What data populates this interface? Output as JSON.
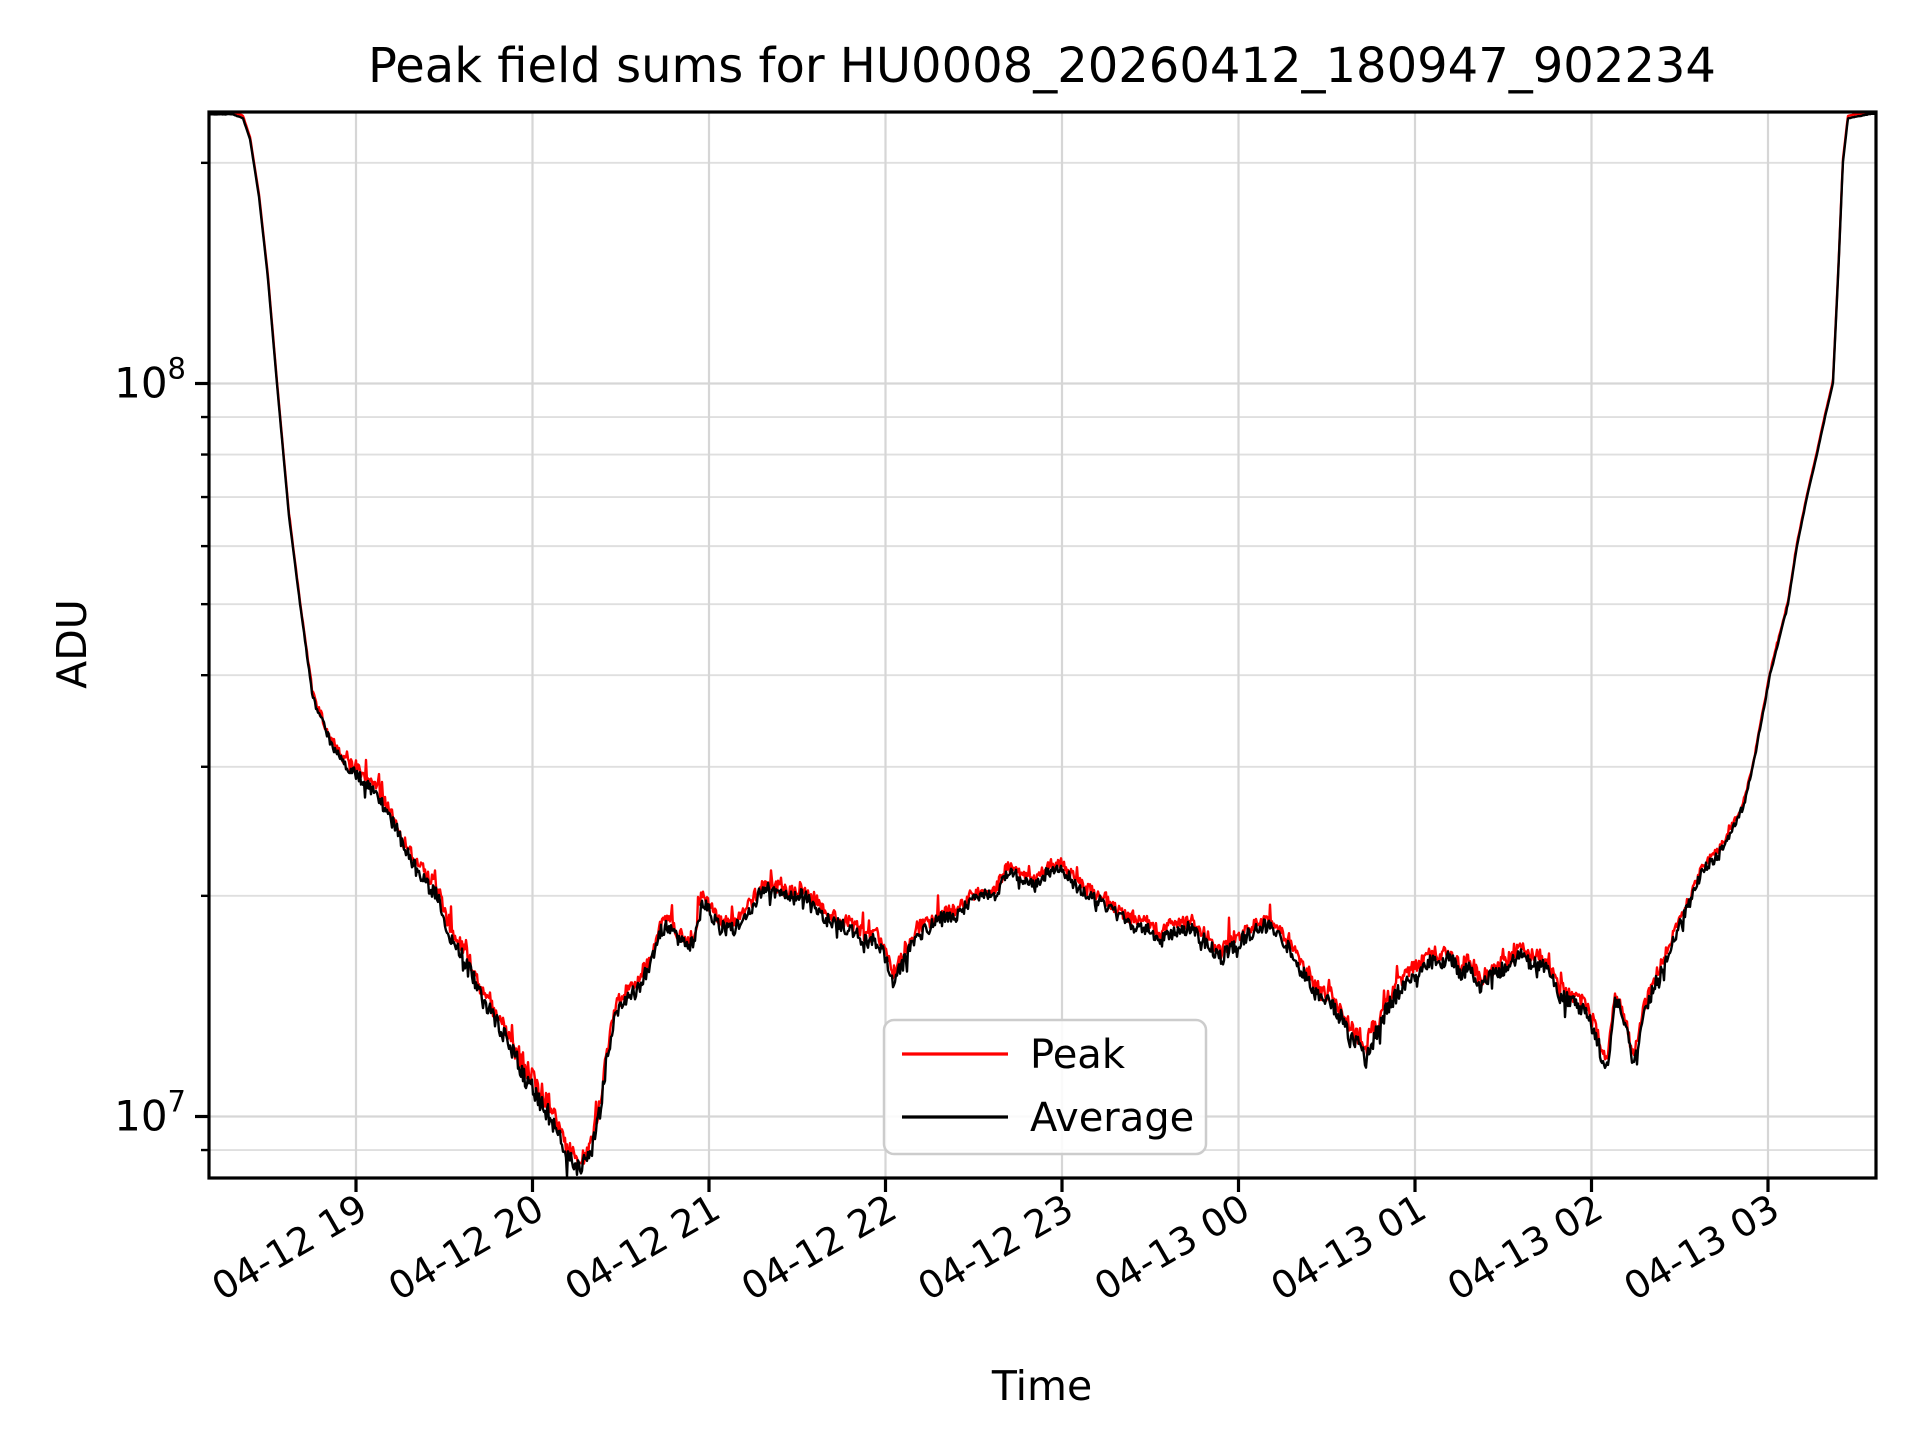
{
  "figure": {
    "title": "Peak field sums for HU0008_20260412_180947_902234",
    "background": "#ffffff"
  },
  "axes": {
    "xlabel": "Time",
    "ylabel": "ADU",
    "spine_color": "#000000",
    "grid_major_color": "#d6d6d6",
    "grid_minor_color": "#dfdfdf"
  },
  "legend": {
    "items": [
      {
        "label": "Peak",
        "color": "#ff0000"
      },
      {
        "label": "Average",
        "color": "#000000"
      }
    ]
  },
  "chart_data": {
    "type": "line",
    "title": "Peak field sums for HU0008_20260412_180947_902234",
    "xlabel": "Time",
    "ylabel": "ADU",
    "yscale": "log",
    "ylim": [
      8240000,
      235000000
    ],
    "xlim_hours_after_0412_1800": [
      0.167,
      9.612
    ],
    "grid": "both",
    "legend_loc": "lower center",
    "x_tick_hours": [
      1,
      2,
      3,
      4,
      5,
      6,
      7,
      8,
      9
    ],
    "x_tick_labels": [
      "04-12 19",
      "04-12 20",
      "04-12 21",
      "04-12 22",
      "04-12 23",
      "04-13 00",
      "04-13 01",
      "04-13 02",
      "04-13 03"
    ],
    "y_tick_values": [
      10000000,
      100000000
    ],
    "y_tick_labels": [
      {
        "base": "10",
        "exp": "7"
      },
      {
        "base": "10",
        "exp": "8"
      }
    ],
    "series": [
      {
        "name": "Peak",
        "color": "#ff0000",
        "derivation": "average_plus_log_offset",
        "log_offset": 0.012
      },
      {
        "name": "Average",
        "color": "#000000",
        "derivation": "anchors_with_noise"
      }
    ],
    "average_anchors_t_value_noise": [
      [
        0.167,
        233000000,
        0.0004
      ],
      [
        0.3,
        233000000,
        0.0004
      ],
      [
        0.36,
        230000000,
        0.0005
      ],
      [
        0.4,
        215000000,
        0.0005
      ],
      [
        0.45,
        180000000,
        0.0005
      ],
      [
        0.5,
        140000000,
        0.0005
      ],
      [
        0.552,
        100000000,
        0.0005
      ],
      [
        0.62,
        66000000,
        0.0008
      ],
      [
        0.683,
        50000000,
        0.0012
      ],
      [
        0.72,
        43000000,
        0.002
      ],
      [
        0.756,
        37300000,
        0.005
      ],
      [
        0.85,
        32500000,
        0.008
      ],
      [
        0.94,
        30000000,
        0.008
      ],
      [
        1.01,
        29200000,
        0.009
      ],
      [
        1.08,
        28000000,
        0.01
      ],
      [
        1.14,
        27000000,
        0.01
      ],
      [
        1.19,
        25500000,
        0.01
      ],
      [
        1.23,
        24600000,
        0.011
      ],
      [
        1.27,
        23200000,
        0.011
      ],
      [
        1.33,
        22000000,
        0.012
      ],
      [
        1.4,
        20800000,
        0.012
      ],
      [
        1.46,
        20000000,
        0.012
      ],
      [
        1.53,
        17800000,
        0.013
      ],
      [
        1.63,
        16000000,
        0.014
      ],
      [
        1.72,
        14400000,
        0.015
      ],
      [
        1.82,
        13100000,
        0.016
      ],
      [
        1.91,
        11900000,
        0.016
      ],
      [
        2.0,
        10900000,
        0.016
      ],
      [
        2.1,
        10000000,
        0.016
      ],
      [
        2.16,
        9300000,
        0.015
      ],
      [
        2.2,
        8800000,
        0.014
      ],
      [
        2.25,
        8550000,
        0.013
      ],
      [
        2.3,
        8650000,
        0.014
      ],
      [
        2.33,
        8900000,
        0.014
      ],
      [
        2.38,
        10100000,
        0.013
      ],
      [
        2.42,
        11900000,
        0.012
      ],
      [
        2.46,
        13500000,
        0.012
      ],
      [
        2.51,
        14400000,
        0.012
      ],
      [
        2.59,
        14800000,
        0.012
      ],
      [
        2.67,
        16300000,
        0.012
      ],
      [
        2.73,
        18000000,
        0.011
      ],
      [
        2.78,
        18200000,
        0.011
      ],
      [
        2.82,
        17500000,
        0.011
      ],
      [
        2.89,
        17000000,
        0.012
      ],
      [
        2.93,
        17800000,
        0.012
      ],
      [
        2.95,
        19500000,
        0.011
      ],
      [
        2.99,
        19300000,
        0.011
      ],
      [
        3.02,
        18700000,
        0.011
      ],
      [
        3.06,
        18100000,
        0.011
      ],
      [
        3.14,
        18000000,
        0.011
      ],
      [
        3.21,
        18700000,
        0.011
      ],
      [
        3.29,
        20200000,
        0.01
      ],
      [
        3.33,
        20500000,
        0.01
      ],
      [
        3.4,
        20100000,
        0.01
      ],
      [
        3.48,
        19800000,
        0.01
      ],
      [
        3.52,
        20100000,
        0.01
      ],
      [
        3.6,
        19500000,
        0.01
      ],
      [
        3.67,
        18500000,
        0.011
      ],
      [
        3.75,
        18200000,
        0.011
      ],
      [
        3.83,
        17800000,
        0.011
      ],
      [
        3.9,
        17200000,
        0.011
      ],
      [
        3.94,
        17700000,
        0.011
      ],
      [
        4.01,
        16200000,
        0.012
      ],
      [
        4.04,
        15300000,
        0.012
      ],
      [
        4.07,
        15700000,
        0.012
      ],
      [
        4.11,
        16300000,
        0.012
      ],
      [
        4.18,
        17700000,
        0.011
      ],
      [
        4.24,
        18000000,
        0.011
      ],
      [
        4.32,
        18700000,
        0.01
      ],
      [
        4.39,
        18700000,
        0.01
      ],
      [
        4.47,
        19500000,
        0.01
      ],
      [
        4.55,
        20100000,
        0.009
      ],
      [
        4.62,
        20000000,
        0.009
      ],
      [
        4.69,
        21500000,
        0.009
      ],
      [
        4.77,
        21200000,
        0.009
      ],
      [
        4.85,
        20600000,
        0.009
      ],
      [
        4.92,
        21600000,
        0.009
      ],
      [
        4.99,
        21800000,
        0.009
      ],
      [
        5.12,
        20200000,
        0.01
      ],
      [
        5.22,
        19600000,
        0.01
      ],
      [
        5.31,
        18900000,
        0.01
      ],
      [
        5.4,
        18200000,
        0.01
      ],
      [
        5.5,
        18000000,
        0.01
      ],
      [
        5.56,
        17400000,
        0.011
      ],
      [
        5.61,
        17800000,
        0.011
      ],
      [
        5.73,
        18100000,
        0.011
      ],
      [
        5.78,
        17600000,
        0.011
      ],
      [
        5.84,
        17100000,
        0.011
      ],
      [
        5.9,
        16400000,
        0.012
      ],
      [
        5.95,
        16900000,
        0.012
      ],
      [
        6.07,
        17800000,
        0.011
      ],
      [
        6.12,
        18200000,
        0.011
      ],
      [
        6.18,
        18100000,
        0.011
      ],
      [
        6.24,
        17600000,
        0.011
      ],
      [
        6.29,
        16900000,
        0.012
      ],
      [
        6.35,
        15900000,
        0.012
      ],
      [
        6.41,
        15200000,
        0.013
      ],
      [
        6.46,
        14400000,
        0.013
      ],
      [
        6.52,
        14300000,
        0.013
      ],
      [
        6.58,
        13700000,
        0.014
      ],
      [
        6.63,
        12800000,
        0.015
      ],
      [
        6.69,
        12400000,
        0.016
      ],
      [
        6.72,
        12000000,
        0.016
      ],
      [
        6.75,
        12600000,
        0.015
      ],
      [
        6.8,
        13200000,
        0.014
      ],
      [
        6.84,
        14100000,
        0.013
      ],
      [
        6.92,
        14900000,
        0.012
      ],
      [
        6.97,
        15500000,
        0.012
      ],
      [
        7.03,
        15800000,
        0.011
      ],
      [
        7.09,
        16300000,
        0.011
      ],
      [
        7.14,
        16200000,
        0.011
      ],
      [
        7.2,
        16500000,
        0.011
      ],
      [
        7.26,
        15700000,
        0.012
      ],
      [
        7.31,
        16000000,
        0.011
      ],
      [
        7.37,
        15000000,
        0.012
      ],
      [
        7.43,
        15500000,
        0.012
      ],
      [
        7.48,
        15800000,
        0.011
      ],
      [
        7.54,
        16100000,
        0.011
      ],
      [
        7.6,
        16700000,
        0.011
      ],
      [
        7.65,
        16200000,
        0.011
      ],
      [
        7.71,
        16200000,
        0.011
      ],
      [
        7.77,
        15500000,
        0.012
      ],
      [
        7.82,
        14600000,
        0.012
      ],
      [
        7.88,
        14400000,
        0.012
      ],
      [
        7.94,
        14100000,
        0.012
      ],
      [
        7.99,
        13500000,
        0.012
      ],
      [
        8.03,
        12800000,
        0.012
      ],
      [
        8.06,
        12000000,
        0.011
      ],
      [
        8.09,
        11600000,
        0.01
      ],
      [
        8.11,
        13000000,
        0.008
      ],
      [
        8.13,
        14300000,
        0.008
      ],
      [
        8.16,
        14200000,
        0.008
      ],
      [
        8.21,
        12800000,
        0.009
      ],
      [
        8.23,
        11900000,
        0.009
      ],
      [
        8.26,
        12400000,
        0.009
      ],
      [
        8.29,
        13700000,
        0.009
      ],
      [
        8.34,
        14700000,
        0.01
      ],
      [
        8.41,
        16200000,
        0.01
      ],
      [
        8.48,
        17800000,
        0.01
      ],
      [
        8.56,
        19600000,
        0.009
      ],
      [
        8.63,
        21700000,
        0.008
      ],
      [
        8.71,
        22600000,
        0.007
      ],
      [
        8.78,
        24200000,
        0.006
      ],
      [
        8.86,
        26500000,
        0.005
      ],
      [
        8.915,
        30000000,
        0.003
      ],
      [
        9.011,
        40000000,
        0.002
      ],
      [
        9.113,
        50000000,
        0.001
      ],
      [
        9.164,
        60000000,
        0.0008
      ],
      [
        9.221,
        70000000,
        0.0006
      ],
      [
        9.277,
        80000000,
        0.0005
      ],
      [
        9.323,
        90000000,
        0.0005
      ],
      [
        9.368,
        100000000,
        0.0005
      ],
      [
        9.4,
        145000000,
        0.0004
      ],
      [
        9.424,
        200000000,
        0.0004
      ],
      [
        9.453,
        230000000,
        0.0004
      ],
      [
        9.612,
        234000000,
        0.0004
      ]
    ]
  }
}
